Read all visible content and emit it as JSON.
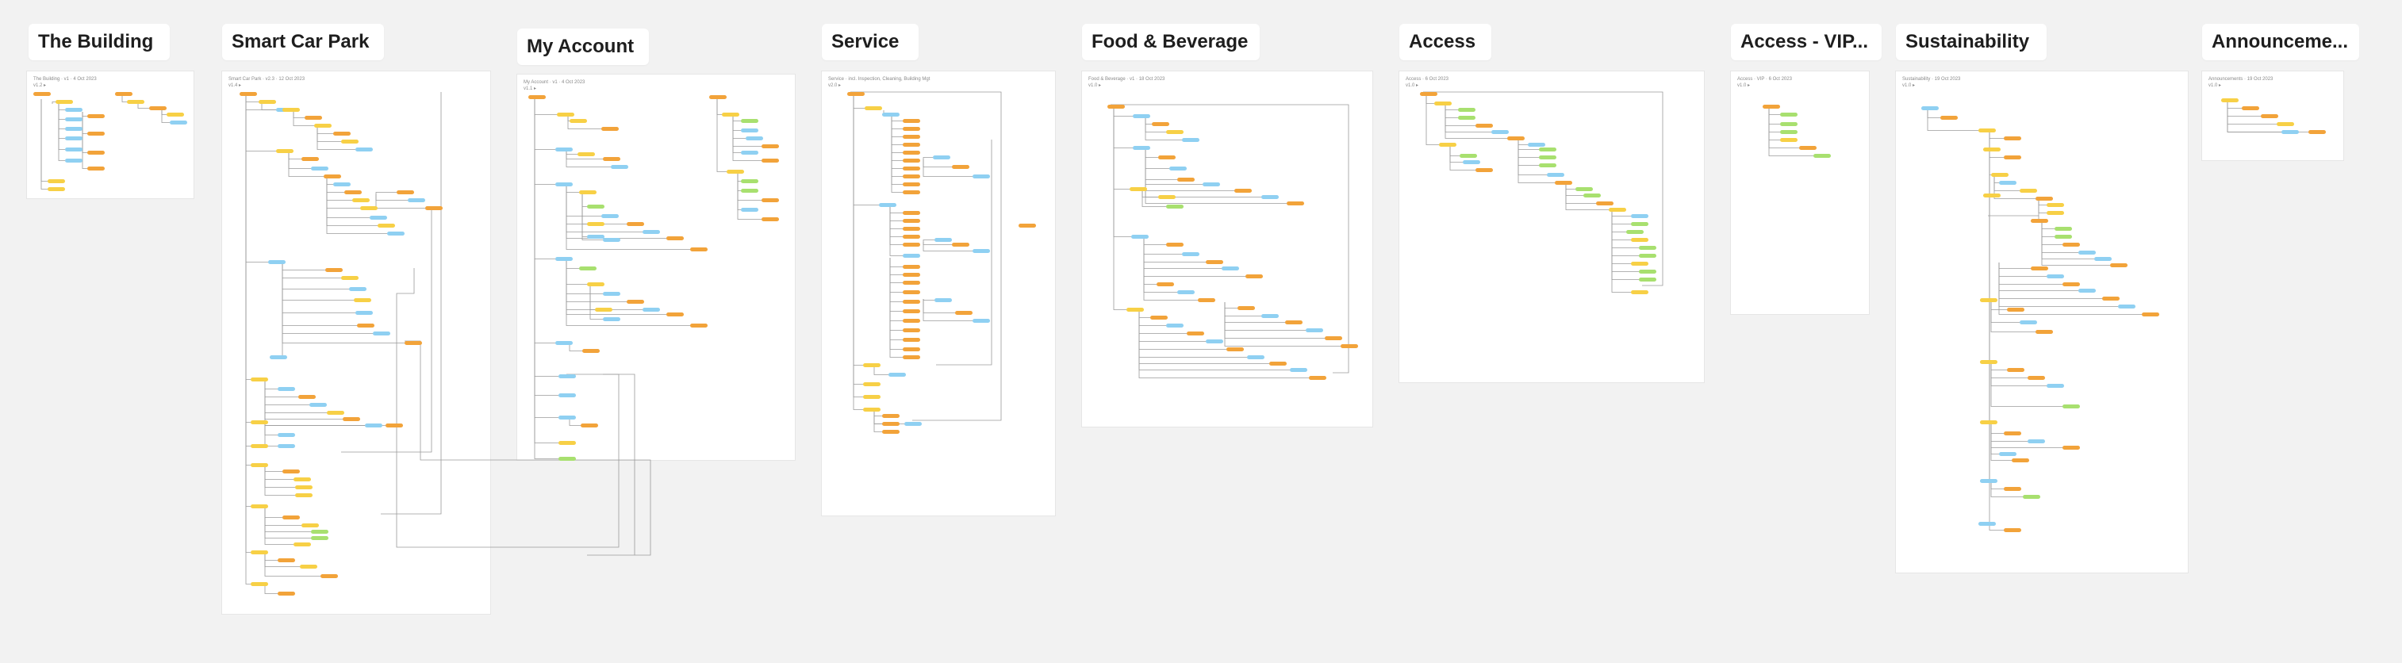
{
  "colors": {
    "canvas": "#f2f2f2",
    "frame": "#ffffff",
    "title_text": "#1e1e1e",
    "node_orange": "#f2a33a",
    "node_yellow": "#f7d046",
    "node_blue": "#8fd0f2",
    "node_green": "#a8e06f",
    "connector": "#9a9a9a"
  },
  "frames": [
    {
      "id": "building",
      "title": "The Building",
      "meta_line1": "The Building · v1 · 4 Oct 2023",
      "meta_line2": "v1.2 ▸"
    },
    {
      "id": "carpark",
      "title": "Smart Car Park",
      "meta_line1": "Smart Car Park · v2.3 · 12 Oct 2023",
      "meta_line2": "v1.4 ▸"
    },
    {
      "id": "account",
      "title": "My Account",
      "meta_line1": "My Account · v1 · 4 Oct 2023",
      "meta_line2": "v1.1 ▸"
    },
    {
      "id": "service",
      "title": "Service",
      "meta_line1": "Service · incl. Inspection, Cleaning, Building Mgt",
      "meta_line2": "v2.0 ▸"
    },
    {
      "id": "food",
      "title": "Food & Beverage",
      "meta_line1": "Food & Beverage · v1 · 18 Oct 2023",
      "meta_line2": "v1.0 ▸"
    },
    {
      "id": "access",
      "title": "Access",
      "meta_line1": "Access · 6 Oct 2023",
      "meta_line2": "v1.0 ▸"
    },
    {
      "id": "vip",
      "title": "Access - VIP...",
      "meta_line1": "Access · VIP · 6 Oct 2023",
      "meta_line2": "v1.0 ▸"
    },
    {
      "id": "sustain",
      "title": "Sustainability",
      "meta_line1": "Sustainability · 19 Oct 2023",
      "meta_line2": "v1.0 ▸"
    },
    {
      "id": "announce",
      "title": "Announceme...",
      "meta_line1": "Announcements · 19 Oct 2023",
      "meta_line2": "v1.0 ▸"
    }
  ]
}
